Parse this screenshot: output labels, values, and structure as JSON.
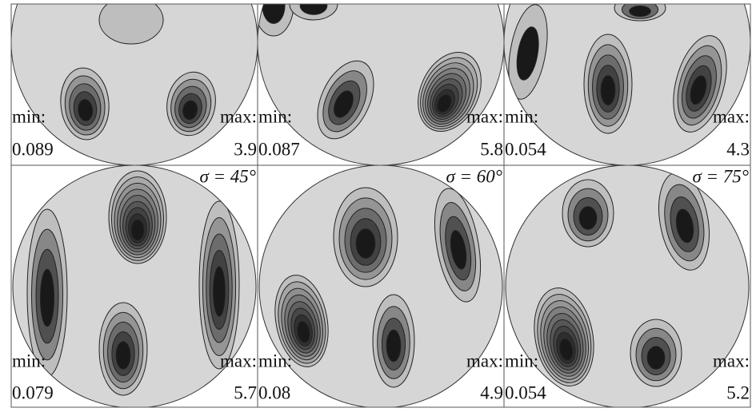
{
  "panels": [
    {
      "min_label": "min:",
      "min": "0.089",
      "max_label": "max:",
      "max": "3.9"
    },
    {
      "min_label": "min:",
      "min": "0.087",
      "max_label": "max:",
      "max": "5.8"
    },
    {
      "min_label": "min:",
      "min": "0.054",
      "max_label": "max:",
      "max": "4.3"
    },
    {
      "min_label": "min:",
      "min": "0.079",
      "max_label": "max:",
      "max": "5.7",
      "sigma": "σ = 45°"
    },
    {
      "min_label": "min:",
      "min": "0.08",
      "max_label": "max:",
      "max": "4.9",
      "sigma": "σ = 60°"
    },
    {
      "min_label": "min:",
      "min": "0.054",
      "max_label": "max:",
      "max": "5.2",
      "sigma": "σ = 75°"
    }
  ]
}
